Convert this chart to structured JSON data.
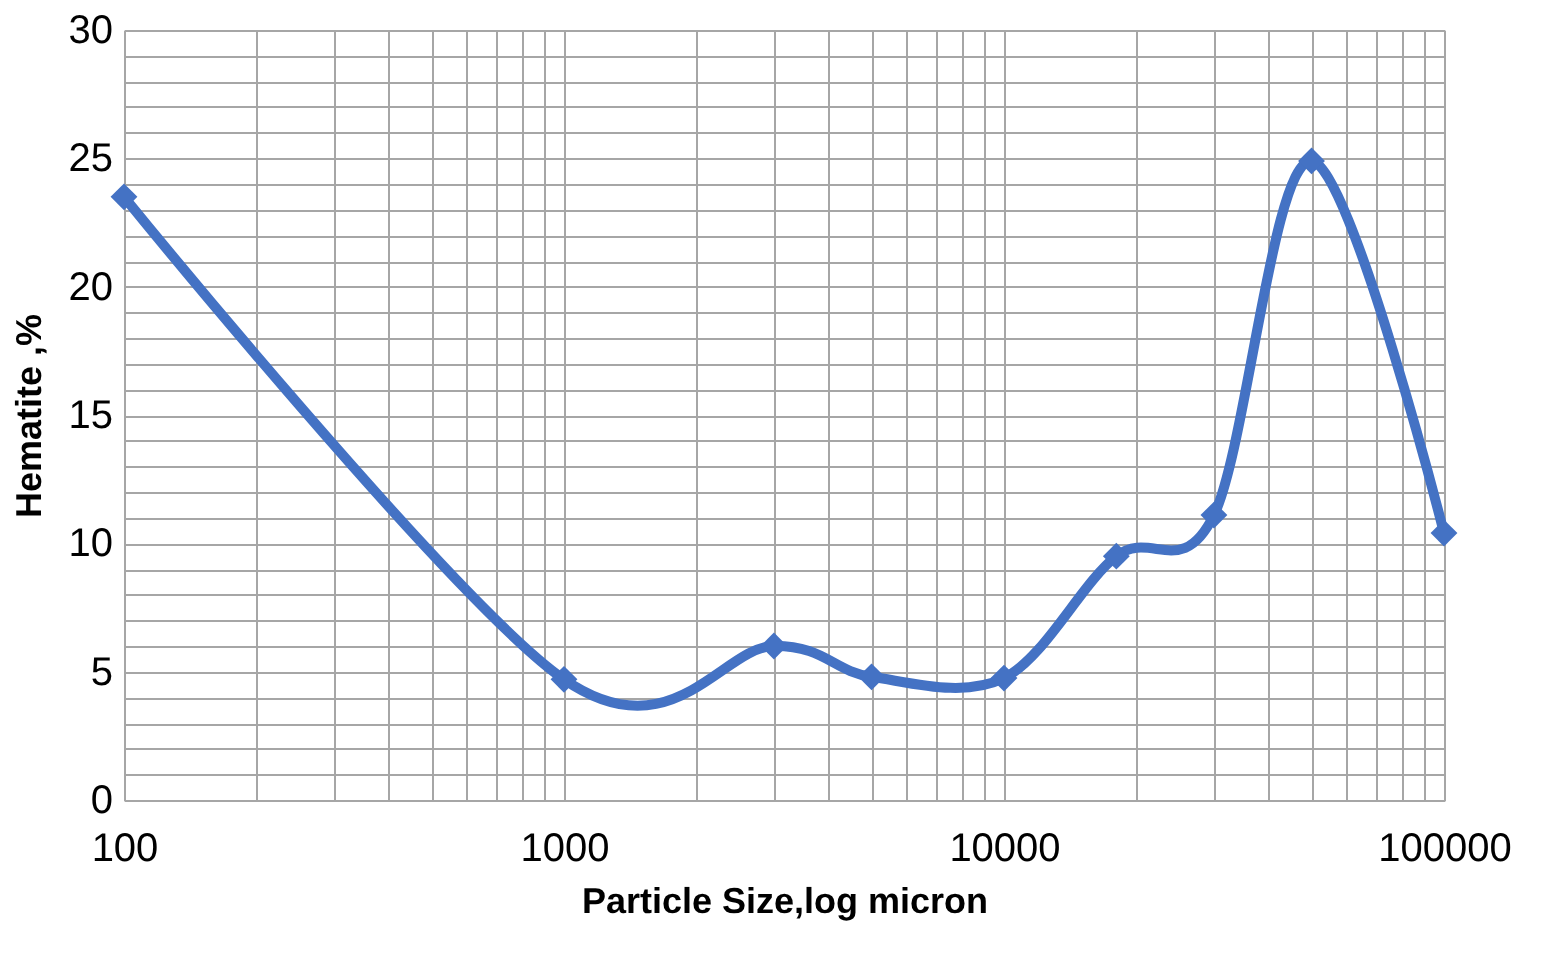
{
  "chart_data": {
    "type": "line",
    "xlabel": "Particle Size,log micron",
    "ylabel": "Hematite ,%",
    "x": [
      100,
      1000,
      3000,
      5000,
      10000,
      18000,
      30000,
      50000,
      100000
    ],
    "series": [
      {
        "color": "#4472c4",
        "values": [
          23.5,
          4.7,
          6.0,
          4.8,
          4.75,
          9.5,
          11.1,
          24.9,
          10.4
        ]
      }
    ],
    "log": "x",
    "xlim": [
      100,
      100000
    ],
    "xticks": [
      100,
      {
        "value": 200,
        "label": null
      },
      {
        "value": 300,
        "label": null
      },
      {
        "value": 400,
        "label": null
      },
      {
        "value": 500,
        "label": null
      },
      {
        "value": 600,
        "label": null
      },
      {
        "value": 700,
        "label": null
      },
      {
        "value": 800,
        "label": null
      },
      {
        "value": 900,
        "label": null
      },
      1000,
      {
        "value": 2000,
        "label": null
      },
      {
        "value": 3000,
        "label": null
      },
      {
        "value": 4000,
        "label": null
      },
      {
        "value": 5000,
        "label": null
      },
      {
        "value": 6000,
        "label": null
      },
      {
        "value": 7000,
        "label": null
      },
      {
        "value": 8000,
        "label": null
      },
      {
        "value": 9000,
        "label": null
      },
      10000,
      {
        "value": 20000,
        "label": null
      },
      {
        "value": 30000,
        "label": null
      },
      {
        "value": 40000,
        "label": null
      },
      {
        "value": 50000,
        "label": null
      },
      {
        "value": 60000,
        "label": null
      },
      {
        "value": 70000,
        "label": null
      },
      {
        "value": 80000,
        "label": null
      },
      {
        "value": 90000,
        "label": null
      },
      100000
    ],
    "ylim": [
      0,
      30
    ],
    "yticks": [
      0,
      {
        "value": 1,
        "label": null
      },
      {
        "value": 2,
        "label": null
      },
      {
        "value": 3,
        "label": null
      },
      {
        "value": 4,
        "label": null
      },
      5,
      {
        "value": 6,
        "label": null
      },
      {
        "value": 7,
        "label": null
      },
      {
        "value": 8,
        "label": null
      },
      {
        "value": 9,
        "label": null
      },
      10,
      {
        "value": 11,
        "label": null
      },
      {
        "value": 12,
        "label": null
      },
      {
        "value": 13,
        "label": null
      },
      {
        "value": 14,
        "label": null
      },
      15,
      {
        "value": 16,
        "label": null
      },
      {
        "value": 17,
        "label": null
      },
      {
        "value": 18,
        "label": null
      },
      {
        "value": 19,
        "label": null
      },
      20,
      {
        "value": 21,
        "label": null
      },
      {
        "value": 22,
        "label": null
      },
      {
        "value": 23,
        "label": null
      },
      {
        "value": 24,
        "label": null
      },
      25,
      {
        "value": 26,
        "label": null
      },
      {
        "value": 27,
        "label": null
      },
      {
        "value": 28,
        "label": null
      },
      {
        "value": 29,
        "label": null
      },
      30
    ],
    "grid": true,
    "marker": "diamond",
    "line_style": "solid",
    "legend": false
  }
}
